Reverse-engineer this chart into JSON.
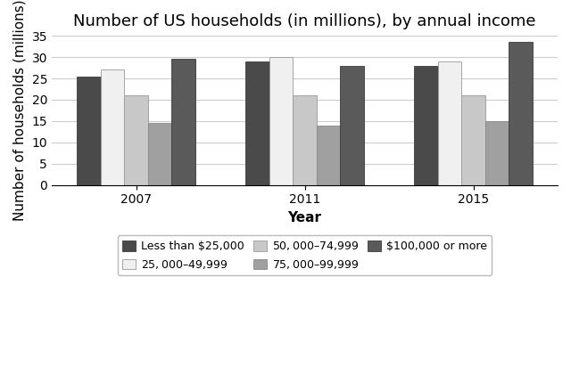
{
  "title": "Number of US households (in millions), by annual income",
  "xlabel": "Year",
  "ylabel": "Number of households (millions)",
  "years": [
    "2007",
    "2011",
    "2015"
  ],
  "categories": [
    "Less than $25,000",
    "$25,000–$49,999",
    "$50,000–$74,999",
    "$75,000–$99,999",
    "$100,000 or more"
  ],
  "values": {
    "Less than $25,000": [
      25.5,
      29.0,
      28.0
    ],
    "$25,000–$49,999": [
      27.0,
      30.0,
      29.0
    ],
    "$50,000–$74,999": [
      21.0,
      21.0,
      21.0
    ],
    "$75,000–$99,999": [
      14.5,
      14.0,
      15.0
    ],
    "$100,000 or more": [
      29.5,
      28.0,
      33.5
    ]
  },
  "colors": {
    "Less than $25,000": "#4a4a4a",
    "$25,000–$49,999": "#f0f0f0",
    "$50,000–$74,999": "#c8c8c8",
    "$75,000–$99,999": "#a0a0a0",
    "$100,000 or more": "#5a5a5a"
  },
  "edgecolors": {
    "Less than $25,000": "#3a3a3a",
    "$25,000–$49,999": "#999999",
    "$50,000–$74,999": "#999999",
    "$75,000–$99,999": "#888888",
    "$100,000 or more": "#3a3a3a"
  },
  "ylim": [
    0,
    35
  ],
  "yticks": [
    0,
    5,
    10,
    15,
    20,
    25,
    30,
    35
  ],
  "bar_width": 0.14,
  "group_positions": [
    0,
    1,
    2
  ],
  "legend_ncol": 3,
  "title_fontsize": 13,
  "axis_fontsize": 11,
  "tick_fontsize": 10,
  "legend_fontsize": 9,
  "background_color": "#ffffff",
  "grid_color": "#cccccc"
}
